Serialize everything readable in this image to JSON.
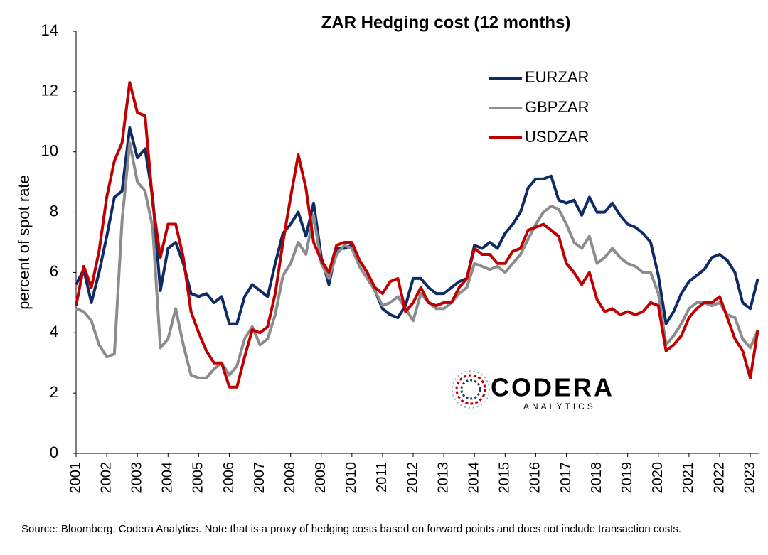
{
  "chart_data": {
    "type": "line",
    "title": "ZAR Hedging cost (12 months)",
    "y_label": "percent of spot rate",
    "source": "Source: Bloomberg, Codera Analytics. Note that is a proxy of hedging costs based on forward points and does not include transaction costs.",
    "logo": {
      "name": "CODERA",
      "tagline": "ANALYTICS"
    },
    "legend_position": "upper right",
    "grid": false,
    "xlim": [
      2001,
      2023.3
    ],
    "xticks": [
      2001,
      2002,
      2003,
      2004,
      2005,
      2006,
      2007,
      2008,
      2009,
      2010,
      2011,
      2012,
      2013,
      2014,
      2015,
      2016,
      2017,
      2018,
      2019,
      2020,
      2021,
      2022,
      2023
    ],
    "ylim": [
      0,
      14
    ],
    "yticks": [
      0,
      2,
      4,
      6,
      8,
      10,
      12,
      14
    ],
    "x": [
      2001,
      2001.25,
      2001.5,
      2001.75,
      2002,
      2002.25,
      2002.5,
      2002.75,
      2003,
      2003.25,
      2003.5,
      2003.75,
      2004,
      2004.25,
      2004.5,
      2004.75,
      2005,
      2005.25,
      2005.5,
      2005.75,
      2006,
      2006.25,
      2006.5,
      2006.75,
      2007,
      2007.25,
      2007.5,
      2007.75,
      2008,
      2008.25,
      2008.5,
      2008.75,
      2009,
      2009.25,
      2009.5,
      2009.75,
      2010,
      2010.25,
      2010.5,
      2010.75,
      2011,
      2011.25,
      2011.5,
      2011.75,
      2012,
      2012.25,
      2012.5,
      2012.75,
      2013,
      2013.25,
      2013.5,
      2013.75,
      2014,
      2014.25,
      2014.5,
      2014.75,
      2015,
      2015.25,
      2015.5,
      2015.75,
      2016,
      2016.25,
      2016.5,
      2016.75,
      2017,
      2017.25,
      2017.5,
      2017.75,
      2018,
      2018.25,
      2018.5,
      2018.75,
      2019,
      2019.25,
      2019.5,
      2019.75,
      2020,
      2020.25,
      2020.5,
      2020.75,
      2021,
      2021.25,
      2021.5,
      2021.75,
      2022,
      2022.25,
      2022.5,
      2022.75,
      2023,
      2023.25
    ],
    "series": [
      {
        "name": "EURZAR",
        "color": "#0f2b66",
        "values": [
          5.6,
          6.1,
          5.0,
          6.0,
          7.2,
          8.5,
          8.7,
          10.8,
          9.8,
          10.1,
          8.5,
          5.4,
          6.8,
          7.0,
          6.3,
          5.3,
          5.2,
          5.3,
          5.0,
          5.2,
          4.3,
          4.3,
          5.2,
          5.6,
          5.4,
          5.2,
          6.3,
          7.3,
          7.6,
          8.0,
          7.2,
          8.3,
          6.5,
          5.6,
          6.8,
          6.8,
          6.9,
          6.4,
          6.0,
          5.4,
          4.8,
          4.6,
          4.5,
          4.9,
          5.8,
          5.8,
          5.5,
          5.3,
          5.3,
          5.5,
          5.7,
          5.8,
          6.9,
          6.8,
          7.0,
          6.8,
          7.3,
          7.6,
          8.0,
          8.8,
          9.1,
          9.1,
          9.2,
          8.4,
          8.3,
          8.4,
          7.9,
          8.5,
          8.0,
          8.0,
          8.3,
          7.9,
          7.6,
          7.5,
          7.3,
          7.0,
          5.9,
          4.3,
          4.7,
          5.3,
          5.7,
          5.9,
          6.1,
          6.5,
          6.6,
          6.4,
          6.0,
          5.0,
          4.8,
          5.8
        ]
      },
      {
        "name": "GBPZAR",
        "color": "#8c8c8c",
        "values": [
          4.8,
          4.7,
          4.4,
          3.6,
          3.2,
          3.3,
          7.7,
          10.3,
          9.0,
          8.7,
          7.5,
          3.5,
          3.8,
          4.8,
          3.6,
          2.6,
          2.5,
          2.5,
          2.8,
          3.0,
          2.6,
          2.9,
          3.8,
          4.2,
          3.6,
          3.8,
          4.6,
          5.9,
          6.3,
          7.0,
          6.6,
          7.9,
          6.3,
          5.8,
          6.6,
          6.9,
          6.8,
          6.2,
          5.8,
          5.4,
          4.9,
          5.0,
          5.2,
          4.8,
          4.4,
          5.3,
          5.0,
          4.8,
          4.8,
          5.0,
          5.3,
          5.5,
          6.3,
          6.2,
          6.1,
          6.2,
          6.0,
          6.3,
          6.6,
          7.1,
          7.6,
          8.0,
          8.2,
          8.1,
          7.6,
          7.0,
          6.8,
          7.2,
          6.3,
          6.5,
          6.8,
          6.5,
          6.3,
          6.2,
          6.0,
          6.0,
          5.3,
          3.6,
          3.9,
          4.3,
          4.8,
          5.0,
          5.0,
          4.9,
          5.0,
          4.6,
          4.5,
          3.8,
          3.5,
          4.1
        ]
      },
      {
        "name": "USDZAR",
        "color": "#c00000",
        "values": [
          4.9,
          6.2,
          5.5,
          6.7,
          8.5,
          9.7,
          10.3,
          12.3,
          11.3,
          11.2,
          8.3,
          6.5,
          7.6,
          7.6,
          6.5,
          4.7,
          4.0,
          3.4,
          3.0,
          3.0,
          2.2,
          2.2,
          3.2,
          4.1,
          4.0,
          4.2,
          5.3,
          7.0,
          8.5,
          9.9,
          8.8,
          7.0,
          6.4,
          6.0,
          6.9,
          7.0,
          7.0,
          6.4,
          6.0,
          5.5,
          5.3,
          5.7,
          5.8,
          4.7,
          5.0,
          5.5,
          5.0,
          4.9,
          5.0,
          5.0,
          5.5,
          5.8,
          6.8,
          6.6,
          6.6,
          6.3,
          6.3,
          6.7,
          6.8,
          7.4,
          7.5,
          7.6,
          7.4,
          7.2,
          6.3,
          6.0,
          5.6,
          6.0,
          5.1,
          4.7,
          4.8,
          4.6,
          4.7,
          4.6,
          4.7,
          5.0,
          4.9,
          3.4,
          3.6,
          3.9,
          4.5,
          4.8,
          5.0,
          5.0,
          5.2,
          4.5,
          3.8,
          3.4,
          2.5,
          4.1
        ]
      }
    ]
  }
}
